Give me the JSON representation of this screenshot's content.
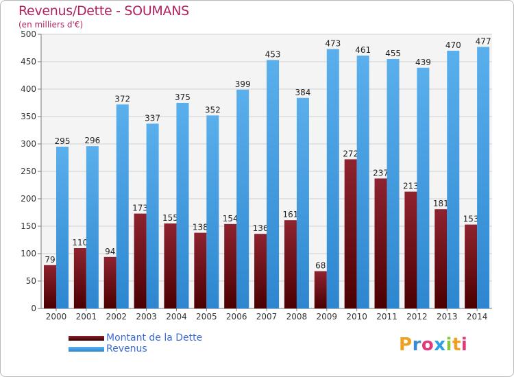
{
  "chart_data": {
    "type": "bar",
    "title": "Revenus/Dette - SOUMANS",
    "subtitle": "(en milliers d'€)",
    "categories": [
      "2000",
      "2001",
      "2002",
      "2003",
      "2004",
      "2005",
      "2006",
      "2007",
      "2008",
      "2009",
      "2010",
      "2011",
      "2012",
      "2013",
      "2014"
    ],
    "series": [
      {
        "name": "Montant de la Dette",
        "color": "#7a1420",
        "values": [
          79,
          110,
          94,
          173,
          155,
          138,
          154,
          136,
          161,
          68,
          272,
          237,
          213,
          181,
          153
        ]
      },
      {
        "name": "Revenus",
        "color": "#4ea6e6",
        "values": [
          295,
          296,
          372,
          337,
          375,
          352,
          399,
          453,
          384,
          473,
          461,
          455,
          439,
          470,
          477
        ]
      }
    ],
    "yticks": [
      "0",
      "50",
      "100",
      "150",
      "200",
      "250",
      "300",
      "350",
      "400",
      "450",
      "500"
    ],
    "ylim": [
      0,
      500
    ],
    "grid": true,
    "legend": "bottom-left"
  },
  "brand": {
    "letters": [
      "P",
      "r",
      "o",
      "x",
      "i",
      "t",
      "i"
    ],
    "colors": [
      "#f0a020",
      "#3a8ad8",
      "#e03878",
      "#2aa0e0",
      "#8cc63f",
      "#f0a020",
      "#e03878"
    ]
  }
}
